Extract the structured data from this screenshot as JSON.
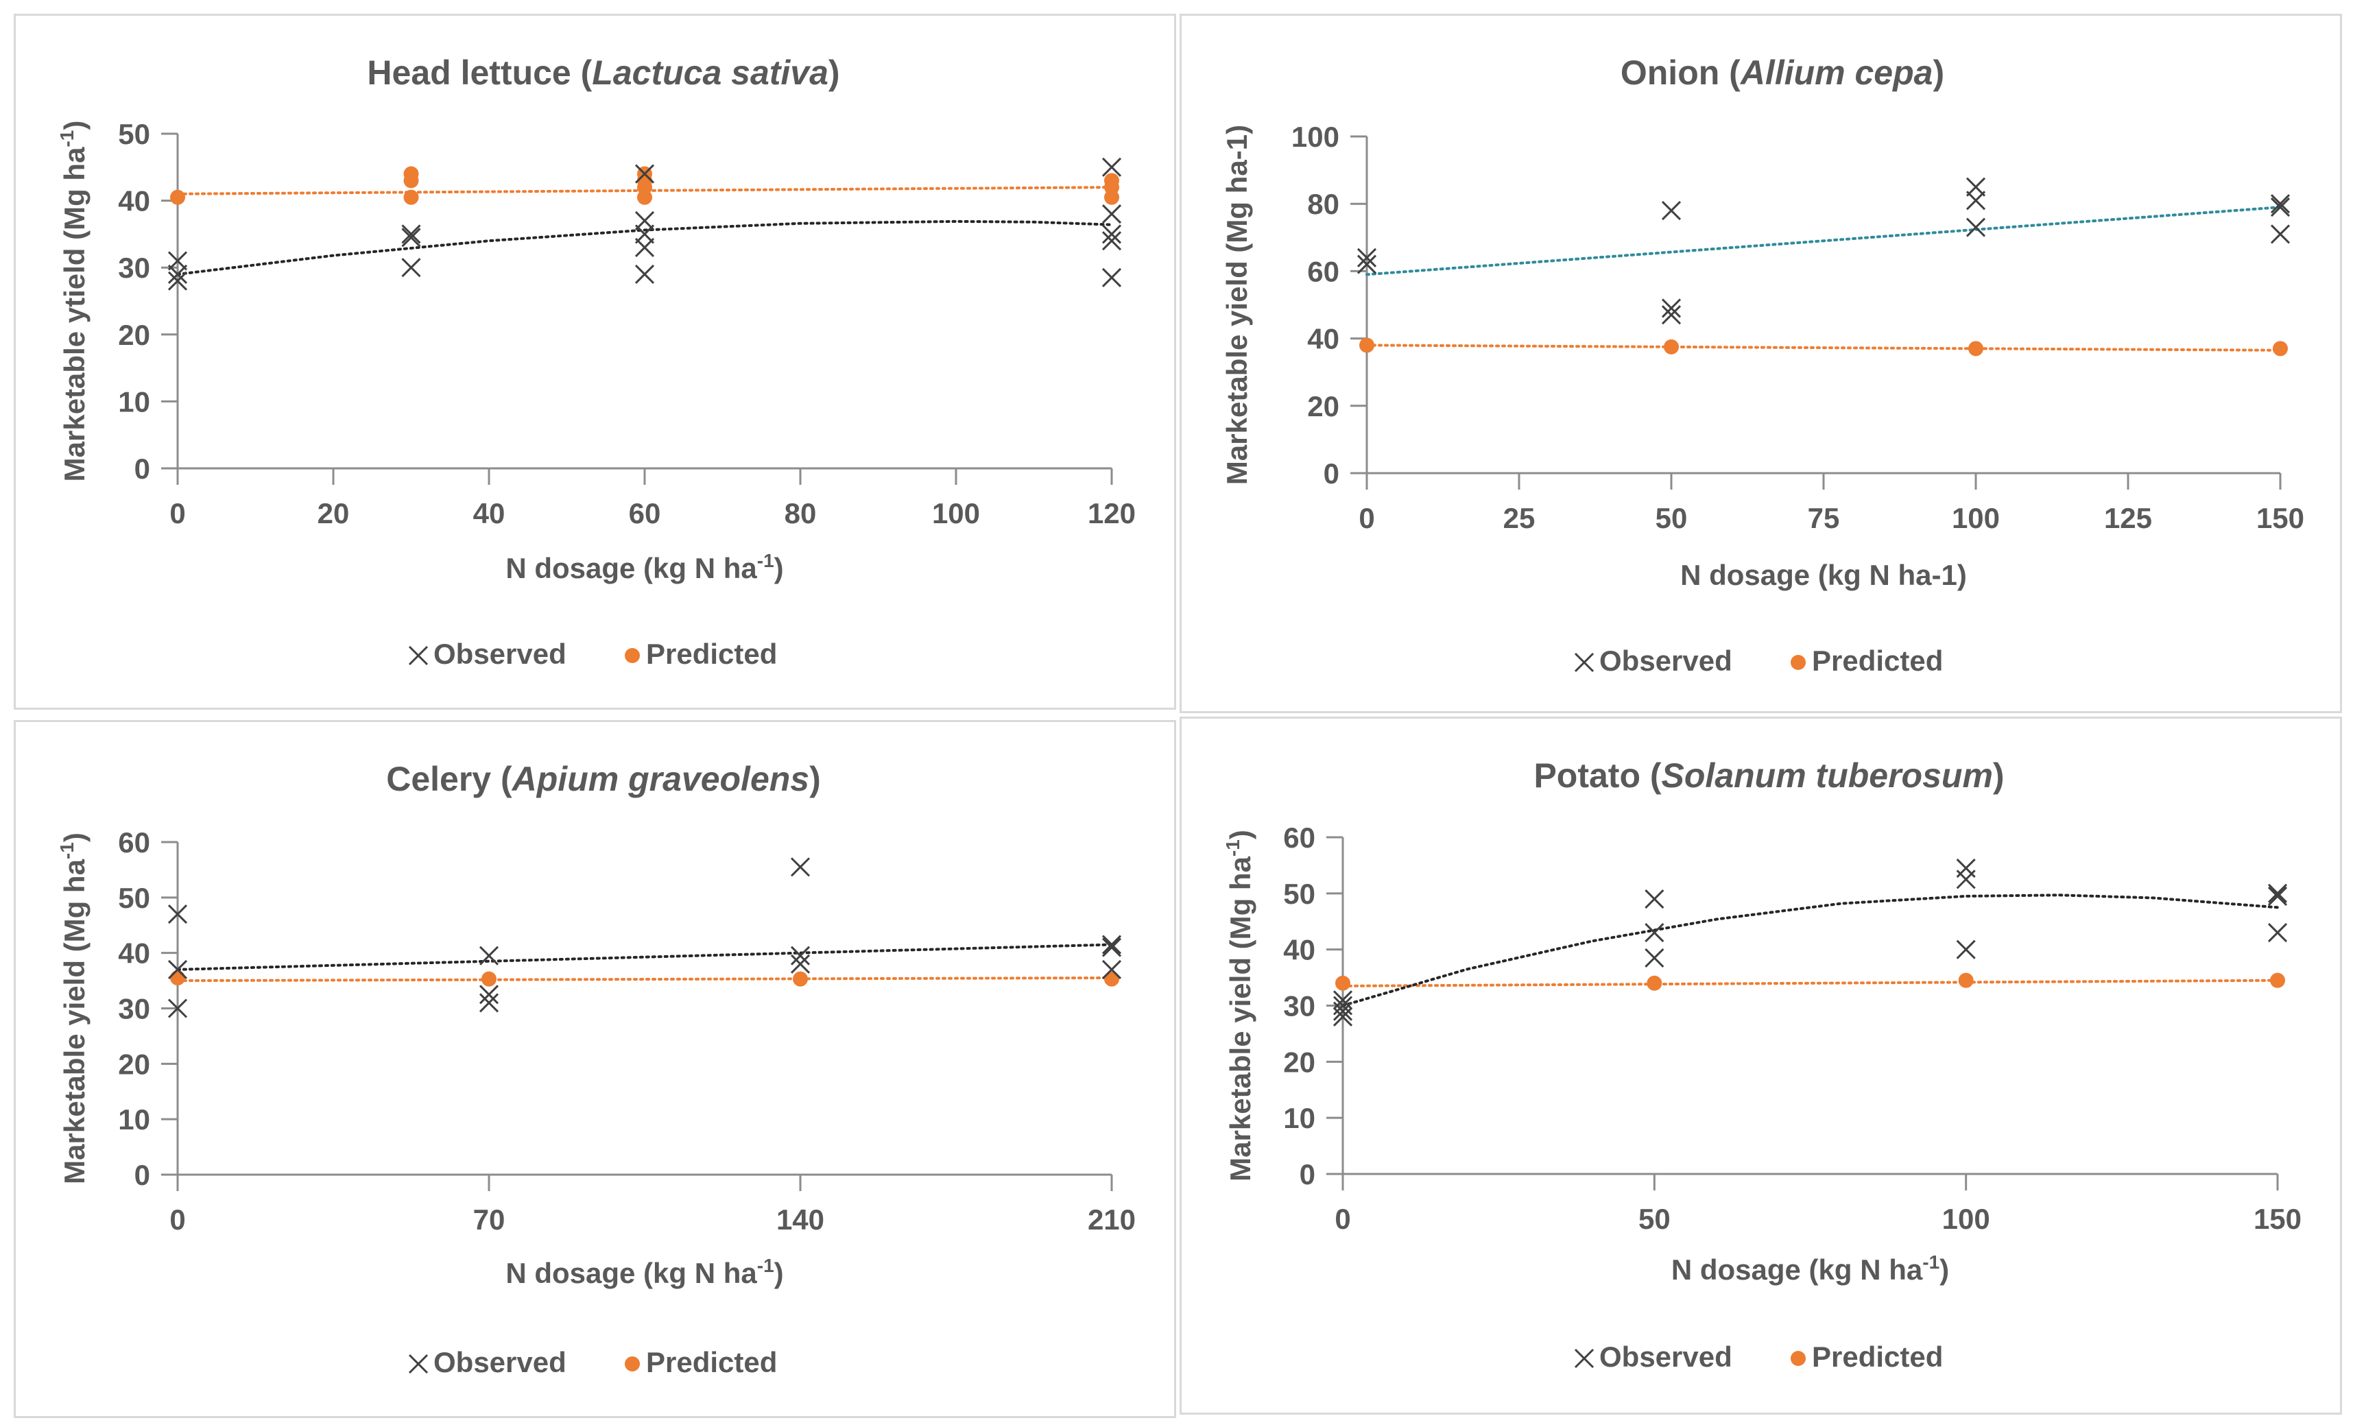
{
  "colors": {
    "observed": "#404040",
    "predicted": "#ED7D31",
    "trend_default": "#262626",
    "text": "#595959"
  },
  "chart_data": [
    {
      "type": "scatter",
      "title": {
        "common": "Head lettuce (",
        "italic": "Lactuca sativa",
        "close": ")"
      },
      "xlabel": "N dosage (kg N ha-1)",
      "xlabel_parts": {
        "pre": "N dosage (kg N ha",
        "sup": "-1",
        "post": ")"
      },
      "ylabel": "Marketable yield (Mg ha-1)",
      "ylabel_parts": {
        "pre": "Marketable ytield (Mg ha",
        "sup": "-1",
        "post": ")"
      },
      "xlim": [
        0,
        120
      ],
      "ylim": [
        0,
        50
      ],
      "xticks": [
        0,
        20,
        40,
        60,
        80,
        100,
        120
      ],
      "yticks": [
        0,
        10,
        20,
        30,
        40,
        50
      ],
      "legend": [
        "Observed",
        "Predicted"
      ],
      "legend_position": "bottom",
      "observed": [
        [
          0,
          31
        ],
        [
          0,
          28
        ],
        [
          0,
          29
        ],
        [
          30,
          35
        ],
        [
          30,
          34.5
        ],
        [
          30,
          30
        ],
        [
          60,
          44
        ],
        [
          60,
          37
        ],
        [
          60,
          35
        ],
        [
          60,
          33
        ],
        [
          60,
          29
        ],
        [
          120,
          45
        ],
        [
          120,
          38
        ],
        [
          120,
          35
        ],
        [
          120,
          34
        ],
        [
          120,
          28.5
        ]
      ],
      "predicted": [
        [
          0,
          40.5
        ],
        [
          30,
          44
        ],
        [
          30,
          43
        ],
        [
          30,
          40.5
        ],
        [
          60,
          44
        ],
        [
          60,
          43
        ],
        [
          60,
          42
        ],
        [
          60,
          40.5
        ],
        [
          120,
          43
        ],
        [
          120,
          42
        ],
        [
          120,
          40.5
        ]
      ],
      "trend_observed": [
        [
          0,
          29
        ],
        [
          20,
          31.8
        ],
        [
          40,
          34
        ],
        [
          60,
          35.6
        ],
        [
          80,
          36.6
        ],
        [
          100,
          36.9
        ],
        [
          110,
          36.8
        ],
        [
          120,
          36.4
        ]
      ],
      "trend_predicted": [
        [
          0,
          41
        ],
        [
          120,
          42
        ]
      ],
      "trend_color": "#262626"
    },
    {
      "type": "scatter",
      "title": {
        "common": "Onion (",
        "italic": "Allium cepa",
        "close": ")"
      },
      "xlabel": "N dosage (kg N ha-1)",
      "xlabel_parts": {
        "pre": "N dosage (kg N ha-1)",
        "sup": "",
        "post": ""
      },
      "ylabel": "Marketable yield (Mg ha-1)",
      "ylabel_parts": {
        "pre": "Marketable yield (Mg ha-1)",
        "sup": "",
        "post": ""
      },
      "xlim": [
        0,
        150
      ],
      "ylim": [
        0,
        100
      ],
      "xticks": [
        0,
        25,
        50,
        75,
        100,
        125,
        150
      ],
      "yticks": [
        0,
        20,
        40,
        60,
        80,
        100
      ],
      "legend": [
        "Observed",
        "Predicted"
      ],
      "legend_position": "bottom",
      "observed": [
        [
          0,
          64
        ],
        [
          0,
          62
        ],
        [
          50,
          78
        ],
        [
          50,
          49
        ],
        [
          50,
          47
        ],
        [
          100,
          85
        ],
        [
          100,
          81
        ],
        [
          100,
          73
        ],
        [
          150,
          80
        ],
        [
          150,
          79
        ],
        [
          150,
          71
        ]
      ],
      "predicted": [
        [
          0,
          38
        ],
        [
          50,
          37.5
        ],
        [
          100,
          37
        ],
        [
          150,
          37
        ]
      ],
      "trend_observed": [
        [
          0,
          59
        ],
        [
          150,
          79
        ]
      ],
      "trend_predicted": [
        [
          0,
          38
        ],
        [
          150,
          36.5
        ]
      ],
      "trend_color": "#2E8B9A"
    },
    {
      "type": "scatter",
      "title": {
        "common": "Celery (",
        "italic": "Apium graveolens",
        "close": ")"
      },
      "xlabel": "N dosage (kg N ha-1)",
      "xlabel_parts": {
        "pre": "N dosage (kg N ha",
        "sup": "-1",
        "post": ")"
      },
      "ylabel": "Marketable yield (Mg ha-1)",
      "ylabel_parts": {
        "pre": "Marketable yield (Mg ha",
        "sup": "-1",
        "post": ")"
      },
      "xlim": [
        0,
        210
      ],
      "ylim": [
        0,
        60
      ],
      "xticks": [
        0,
        70,
        140,
        210
      ],
      "yticks": [
        0,
        10,
        20,
        30,
        40,
        50,
        60
      ],
      "legend": [
        "Observed",
        "Predicted"
      ],
      "legend_position": "bottom",
      "observed": [
        [
          0,
          47
        ],
        [
          0,
          37
        ],
        [
          0,
          30
        ],
        [
          70,
          39.5
        ],
        [
          70,
          32.5
        ],
        [
          70,
          31
        ],
        [
          140,
          55.5
        ],
        [
          140,
          39.5
        ],
        [
          140,
          38
        ],
        [
          210,
          41.5
        ],
        [
          210,
          41
        ],
        [
          210,
          37
        ]
      ],
      "predicted": [
        [
          0,
          35.5
        ],
        [
          70,
          35.3
        ],
        [
          140,
          35.3
        ],
        [
          210,
          35.3
        ]
      ],
      "trend_observed": [
        [
          0,
          37
        ],
        [
          210,
          41.5
        ]
      ],
      "trend_predicted": [
        [
          0,
          35
        ],
        [
          210,
          35.5
        ]
      ],
      "trend_color": "#262626"
    },
    {
      "type": "scatter",
      "title": {
        "common": "Potato (",
        "italic": "Solanum tuberosum",
        "close": ")"
      },
      "xlabel": "N dosage (kg N ha-1)",
      "xlabel_parts": {
        "pre": "N dosage (kg N ha",
        "sup": "-1",
        "post": ")"
      },
      "ylabel": "Marketable yield (Mg ha-1)",
      "ylabel_parts": {
        "pre": "Marketable yield (Mg ha",
        "sup": "-1",
        "post": ")"
      },
      "xlim": [
        0,
        150
      ],
      "ylim": [
        0,
        60
      ],
      "xticks": [
        0,
        50,
        100,
        150
      ],
      "yticks": [
        0,
        10,
        20,
        30,
        40,
        50,
        60
      ],
      "legend": [
        "Observed",
        "Predicted"
      ],
      "legend_position": "bottom",
      "observed": [
        [
          0,
          31
        ],
        [
          0,
          30
        ],
        [
          0,
          29
        ],
        [
          0,
          28
        ],
        [
          50,
          49
        ],
        [
          50,
          43
        ],
        [
          50,
          38.5
        ],
        [
          100,
          54.5
        ],
        [
          100,
          52.5
        ],
        [
          100,
          40
        ],
        [
          150,
          50
        ],
        [
          150,
          49.5
        ],
        [
          150,
          43
        ]
      ],
      "predicted": [
        [
          0,
          34
        ],
        [
          50,
          34
        ],
        [
          100,
          34.5
        ],
        [
          150,
          34.5
        ]
      ],
      "trend_observed": [
        [
          0,
          30
        ],
        [
          20,
          36.5
        ],
        [
          40,
          41.5
        ],
        [
          60,
          45.4
        ],
        [
          80,
          48.2
        ],
        [
          100,
          49.5
        ],
        [
          115,
          49.7
        ],
        [
          130,
          49.2
        ],
        [
          150,
          47.5
        ]
      ],
      "trend_predicted": [
        [
          0,
          33.5
        ],
        [
          150,
          34.5
        ]
      ],
      "trend_color": "#262626"
    }
  ]
}
